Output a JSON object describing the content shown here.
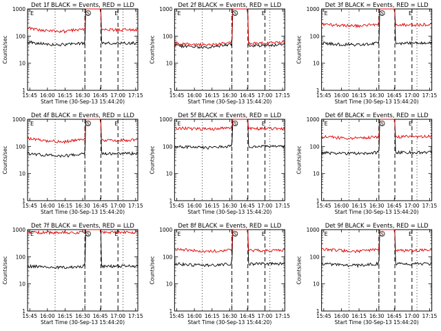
{
  "y_axis": {
    "label": "Counts/sec",
    "scale": "log",
    "ticks": [
      1,
      10,
      100,
      1000
    ],
    "tick_labels": [
      "1",
      "10",
      "100",
      "1000"
    ]
  },
  "x_axis": {
    "label": "Start Time (30-Sep-13 15:44:20)",
    "tick_labels": [
      "15:45",
      "16:00",
      "16:15",
      "16:30",
      "16:45",
      "17:00",
      "17:15"
    ]
  },
  "markers": {
    "start_label": "E",
    "mid_label": "S",
    "end_label": "E"
  },
  "colors": {
    "events": "#000000",
    "lld": "#e00000",
    "axes": "#000000"
  },
  "chart_data": [
    {
      "type": "line",
      "title": "Det 1f BLACK = Events, RED = LLD",
      "xlabel": "Start Time (30-Sep-13 15:44:20)",
      "ylabel": "Counts/sec",
      "yscale": "log",
      "ylim": [
        1,
        1000
      ],
      "x": [
        "15:45",
        "16:00",
        "16:15",
        "16:30",
        "16:45",
        "17:00",
        "17:15"
      ],
      "series": [
        {
          "color": "black",
          "values": [
            60,
            50,
            48,
            55,
            900,
            55,
            55
          ]
        },
        {
          "color": "red",
          "values": [
            200,
            160,
            150,
            180,
            1000,
            170,
            175
          ]
        }
      ]
    },
    {
      "type": "line",
      "title": "Det 2f BLACK = Events, RED = LLD",
      "xlabel": "Start Time (30-Sep-13 15:44:20)",
      "ylabel": "Counts/sec",
      "yscale": "log",
      "ylim": [
        1,
        1000
      ],
      "x": [
        "15:45",
        "16:00",
        "16:15",
        "16:30",
        "16:45",
        "17:00",
        "17:15"
      ],
      "series": [
        {
          "color": "black",
          "values": [
            45,
            40,
            40,
            48,
            700,
            45,
            50
          ]
        },
        {
          "color": "red",
          "values": [
            55,
            50,
            48,
            60,
            1000,
            55,
            60
          ]
        }
      ]
    },
    {
      "type": "line",
      "title": "Det 3f BLACK = Events, RED = LLD",
      "xlabel": "Start Time (30-Sep-13 15:44:20)",
      "ylabel": "Counts/sec",
      "yscale": "log",
      "ylim": [
        1,
        1000
      ],
      "x": [
        "15:45",
        "16:00",
        "16:15",
        "16:30",
        "16:45",
        "17:00",
        "17:15"
      ],
      "series": [
        {
          "color": "black",
          "values": [
            55,
            50,
            48,
            55,
            900,
            55,
            55
          ]
        },
        {
          "color": "red",
          "values": [
            280,
            250,
            240,
            270,
            1000,
            260,
            270
          ]
        }
      ]
    },
    {
      "type": "line",
      "title": "Det 4f BLACK = Events, RED = LLD",
      "xlabel": "Start Time (30-Sep-13 15:44:20)",
      "ylabel": "Counts/sec",
      "yscale": "log",
      "ylim": [
        1,
        1000
      ],
      "x": [
        "15:45",
        "16:00",
        "16:15",
        "16:30",
        "16:45",
        "17:00",
        "17:15"
      ],
      "series": [
        {
          "color": "black",
          "values": [
            55,
            48,
            45,
            52,
            900,
            55,
            55
          ]
        },
        {
          "color": "red",
          "values": [
            200,
            160,
            150,
            180,
            1000,
            170,
            175
          ]
        }
      ]
    },
    {
      "type": "line",
      "title": "Det 5f BLACK = Events, RED = LLD",
      "xlabel": "Start Time (30-Sep-13 15:44:20)",
      "ylabel": "Counts/sec",
      "yscale": "log",
      "ylim": [
        1,
        1000
      ],
      "x": [
        "15:45",
        "16:00",
        "16:15",
        "16:30",
        "16:45",
        "17:00",
        "17:15"
      ],
      "series": [
        {
          "color": "black",
          "values": [
            100,
            95,
            90,
            100,
            1000,
            100,
            100
          ]
        },
        {
          "color": "red",
          "values": [
            480,
            450,
            440,
            480,
            1000,
            450,
            460
          ]
        }
      ]
    },
    {
      "type": "line",
      "title": "Det 6f BLACK = Events, RED = LLD",
      "xlabel": "Start Time (30-Sep-13 15:44:20)",
      "ylabel": "Counts/sec",
      "yscale": "log",
      "ylim": [
        1,
        1000
      ],
      "x": [
        "15:45",
        "16:00",
        "16:15",
        "16:30",
        "16:45",
        "17:00",
        "17:15"
      ],
      "series": [
        {
          "color": "black",
          "values": [
            60,
            55,
            55,
            60,
            900,
            60,
            60
          ]
        },
        {
          "color": "red",
          "values": [
            230,
            210,
            200,
            230,
            1000,
            230,
            240
          ]
        }
      ]
    },
    {
      "type": "line",
      "title": "Det 7f BLACK = Events, RED = LLD",
      "xlabel": "Start Time (30-Sep-13 15:44:20)",
      "ylabel": "Counts/sec",
      "yscale": "log",
      "ylim": [
        1,
        1000
      ],
      "x": [
        "15:45",
        "16:00",
        "16:15",
        "16:30",
        "16:45",
        "17:00",
        "17:15"
      ],
      "series": [
        {
          "color": "black",
          "values": [
            45,
            42,
            40,
            45,
            900,
            45,
            45
          ]
        },
        {
          "color": "red",
          "values": [
            800,
            780,
            760,
            800,
            1000,
            820,
            800
          ]
        }
      ]
    },
    {
      "type": "line",
      "title": "Det 8f BLACK = Events, RED = LLD",
      "xlabel": "Start Time (30-Sep-13 15:44:20)",
      "ylabel": "Counts/sec",
      "yscale": "log",
      "ylim": [
        1,
        1000
      ],
      "x": [
        "15:45",
        "16:00",
        "16:15",
        "16:30",
        "16:45",
        "17:00",
        "17:15"
      ],
      "series": [
        {
          "color": "black",
          "values": [
            55,
            50,
            48,
            55,
            900,
            55,
            55
          ]
        },
        {
          "color": "red",
          "values": [
            190,
            170,
            160,
            180,
            1000,
            170,
            175
          ]
        }
      ]
    },
    {
      "type": "line",
      "title": "Det 9f BLACK = Events, RED = LLD",
      "xlabel": "Start Time (30-Sep-13 15:44:20)",
      "ylabel": "Counts/sec",
      "yscale": "log",
      "ylim": [
        1,
        1000
      ],
      "x": [
        "15:45",
        "16:00",
        "16:15",
        "16:30",
        "16:45",
        "17:00",
        "17:15"
      ],
      "series": [
        {
          "color": "black",
          "values": [
            55,
            50,
            48,
            55,
            900,
            55,
            55
          ]
        },
        {
          "color": "red",
          "values": [
            190,
            170,
            160,
            180,
            1000,
            170,
            175
          ]
        }
      ]
    }
  ]
}
